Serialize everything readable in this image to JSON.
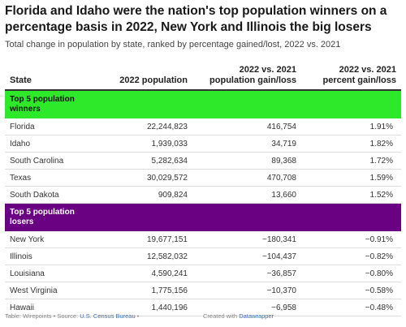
{
  "header": {
    "title": "Florida and Idaho were the nation's top population winners on a percentage basis in 2022, New York and Illinois the big losers",
    "subtitle": "Total change in population by state, ranked by percentage gained/lost, 2022 vs. 2021"
  },
  "table": {
    "columns": [
      "State",
      "2022 population",
      "2022 vs. 2021 population gain/loss",
      "2022 vs. 2021 percent gain/loss"
    ],
    "groups": [
      {
        "label": "Top 5 population winners",
        "color": "#2ee82a",
        "rows": [
          {
            "state": "Florida",
            "pop": "22,244,823",
            "change": "416,754",
            "pct": "1.91%"
          },
          {
            "state": "Idaho",
            "pop": "1,939,033",
            "change": "34,719",
            "pct": "1.82%"
          },
          {
            "state": "South Carolina",
            "pop": "5,282,634",
            "change": "89,368",
            "pct": "1.72%"
          },
          {
            "state": "Texas",
            "pop": "30,029,572",
            "change": "470,708",
            "pct": "1.59%"
          },
          {
            "state": "South Dakota",
            "pop": "909,824",
            "change": "13,660",
            "pct": "1.52%"
          }
        ]
      },
      {
        "label": "Top 5 population losers",
        "color": "#6a0082",
        "rows": [
          {
            "state": "New York",
            "pop": "19,677,151",
            "change": "−180,341",
            "pct": "−0.91%"
          },
          {
            "state": "Illinois",
            "pop": "12,582,032",
            "change": "−104,437",
            "pct": "−0.82%"
          },
          {
            "state": "Louisiana",
            "pop": "4,590,241",
            "change": "−36,857",
            "pct": "−0.80%"
          },
          {
            "state": "West Virginia",
            "pop": "1,775,156",
            "change": "−10,370",
            "pct": "−0.58%"
          },
          {
            "state": "Hawaii",
            "pop": "1,440,196",
            "change": "−6,958",
            "pct": "−0.48%"
          }
        ]
      }
    ]
  },
  "footer": {
    "table_by": "Table: Wirepoints • Source: ",
    "source_link": "U.S. Census Bureau",
    "source_tail": " •",
    "created_with": "Created with ",
    "tool": "Datawrapper"
  },
  "chart_data": {
    "type": "table",
    "title": "Florida and Idaho were the nation's top population winners on a percentage basis in 2022, New York and Illinois the big losers",
    "subtitle": "Total change in population by state, ranked by percentage gained/lost, 2022 vs. 2021",
    "columns": [
      "State",
      "2022 population",
      "2022 vs. 2021 population gain/loss",
      "2022 vs. 2021 percent gain/loss"
    ],
    "rows": [
      [
        "Florida",
        22244823,
        416754,
        1.91
      ],
      [
        "Idaho",
        1939033,
        34719,
        1.82
      ],
      [
        "South Carolina",
        5282634,
        89368,
        1.72
      ],
      [
        "Texas",
        30029572,
        470708,
        1.59
      ],
      [
        "South Dakota",
        909824,
        13660,
        1.52
      ],
      [
        "New York",
        19677151,
        -180341,
        -0.91
      ],
      [
        "Illinois",
        12582032,
        -104437,
        -0.82
      ],
      [
        "Louisiana",
        4590241,
        -36857,
        -0.8
      ],
      [
        "West Virginia",
        1775156,
        -10370,
        -0.58
      ],
      [
        "Hawaii",
        1440196,
        -6958,
        -0.48
      ]
    ]
  }
}
